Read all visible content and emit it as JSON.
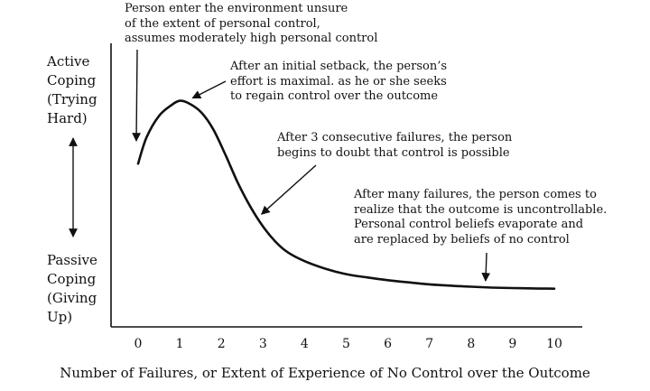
{
  "chart_data": {
    "type": "line",
    "title": "",
    "xlabel": "Number of Failures, or Extent of Experience of No Control over the Outcome",
    "ylabel_top": [
      "Active",
      "Coping",
      "(Trying",
      "Hard)"
    ],
    "ylabel_bottom": [
      "Passive",
      "Coping",
      "(Giving",
      "Up)"
    ],
    "x_ticks": [
      "0",
      "1",
      "2",
      "3",
      "4",
      "5",
      "6",
      "7",
      "8",
      "9",
      "10"
    ],
    "xlim": [
      0,
      10
    ],
    "ylim": [
      0,
      1
    ],
    "grid": false,
    "series": [
      {
        "x": [
          0,
          0.2,
          0.5,
          0.8,
          1.0,
          1.2,
          1.5,
          1.8,
          2.1,
          2.4,
          2.7,
          3.0,
          3.3,
          3.6,
          4.0,
          4.5,
          5.0,
          5.5,
          6.0,
          6.5,
          7.0,
          7.5,
          8.0,
          8.5,
          9.0,
          9.5,
          10.0
        ],
        "y": [
          0.62,
          0.74,
          0.84,
          0.89,
          0.91,
          0.9,
          0.86,
          0.78,
          0.66,
          0.53,
          0.42,
          0.33,
          0.26,
          0.21,
          0.17,
          0.135,
          0.11,
          0.095,
          0.082,
          0.072,
          0.063,
          0.057,
          0.052,
          0.048,
          0.046,
          0.044,
          0.043
        ]
      }
    ],
    "annotations": [
      {
        "lines": [
          "Person enter the environment unsure",
          "of the extent of personal control,",
          "assumes moderately high personal control"
        ],
        "x": 0.0,
        "y": 0.7
      },
      {
        "lines": [
          "After an initial setback, the person’s",
          "effort is maximal. as he or she seeks",
          "to regain control over the outcome"
        ],
        "x": 1.2,
        "y": 0.91
      },
      {
        "lines": [
          "After 3 consecutive failures, the person",
          "begins to doubt that control is possible"
        ],
        "x": 2.9,
        "y": 0.37
      },
      {
        "lines": [
          "After many failures, the person comes to",
          "realize that the outcome is uncontrollable.",
          "Personal control beliefs evaporate and",
          "are replaced by beliefs of no control"
        ],
        "x": 8.35,
        "y": 0.05
      }
    ]
  }
}
